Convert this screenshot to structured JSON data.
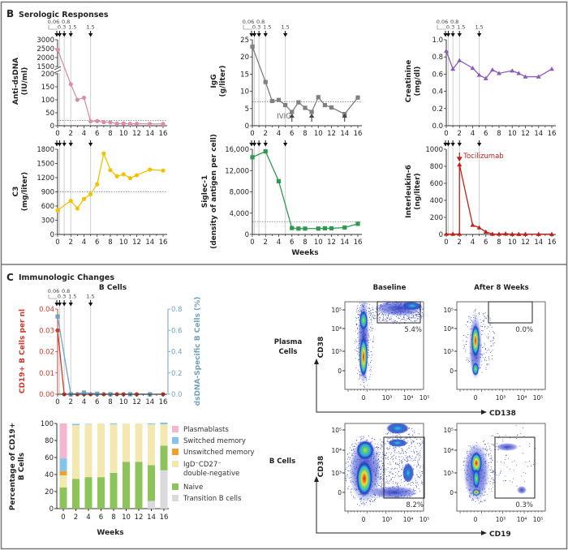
{
  "panel_b": {
    "letter": "B",
    "title": "Serologic Responses",
    "xlabel": "Weeks"
  },
  "panel_c": {
    "letter": "C",
    "title": "Immunologic Changes",
    "bcells_title": "B Cells",
    "bar_xlabel": "Weeks"
  },
  "doses": {
    "weeks": [
      0,
      0.3,
      1,
      2,
      5
    ],
    "labels": [
      "0.06",
      "0.3",
      "0.8",
      "1.5",
      "1.5"
    ]
  },
  "chart_data": [
    {
      "type": "line",
      "ylabel": [
        "Anti-dsDNA",
        "(IU/ml)"
      ],
      "ylim": [
        0,
        3000
      ],
      "axis_break": [
        200,
        1500
      ],
      "yticks": [
        0,
        50,
        100,
        150,
        200,
        1500,
        2000,
        2500,
        3000
      ],
      "xticks": [
        0,
        2,
        4,
        6,
        8,
        10,
        12,
        14,
        16
      ],
      "xlim": [
        0,
        16
      ],
      "reference": 20,
      "color": "#d98fa9",
      "marker": "circle",
      "points": [
        [
          0,
          2450
        ],
        [
          2,
          160
        ],
        [
          3,
          100
        ],
        [
          4,
          108
        ],
        [
          5,
          17
        ],
        [
          6,
          18
        ],
        [
          7,
          14
        ],
        [
          8,
          13
        ],
        [
          9,
          8
        ],
        [
          10,
          9
        ],
        [
          11,
          7
        ],
        [
          12,
          8
        ],
        [
          14,
          7
        ],
        [
          16,
          7
        ]
      ]
    },
    {
      "type": "line",
      "ylabel": [
        "C3",
        "(mg/liter)"
      ],
      "ylim": [
        0,
        1800
      ],
      "yticks": [
        0,
        300,
        600,
        900,
        1200,
        1500,
        1800
      ],
      "xticks": [
        0,
        2,
        4,
        6,
        8,
        10,
        12,
        14,
        16
      ],
      "xlim": [
        0,
        16
      ],
      "reference": 900,
      "color": "#f2c200",
      "marker": "circle",
      "points": [
        [
          0,
          510
        ],
        [
          2,
          710
        ],
        [
          3,
          550
        ],
        [
          4,
          750
        ],
        [
          5,
          850
        ],
        [
          6,
          1060
        ],
        [
          7,
          1710
        ],
        [
          8,
          1360
        ],
        [
          9,
          1230
        ],
        [
          10,
          1270
        ],
        [
          11,
          1190
        ],
        [
          12,
          1250
        ],
        [
          14,
          1370
        ],
        [
          16,
          1350
        ]
      ]
    },
    {
      "type": "line",
      "ylabel": [
        "IgG",
        "(g/liter)"
      ],
      "ylim": [
        0,
        25
      ],
      "yticks": [
        0,
        5,
        10,
        15,
        20,
        25
      ],
      "xticks": [
        0,
        2,
        4,
        6,
        8,
        10,
        12,
        14,
        16
      ],
      "xlim": [
        0,
        16
      ],
      "reference": 7,
      "color": "#808080",
      "marker": "square",
      "annotation": {
        "text": "IVIG",
        "arrows_at": [
          6,
          9,
          14
        ]
      },
      "points": [
        [
          0,
          23
        ],
        [
          2,
          12.7
        ],
        [
          3,
          7.2
        ],
        [
          4,
          7.5
        ],
        [
          5,
          6
        ],
        [
          6,
          4
        ],
        [
          7,
          6.8
        ],
        [
          8,
          5.2
        ],
        [
          9,
          4
        ],
        [
          10,
          8.3
        ],
        [
          11,
          6
        ],
        [
          12,
          5.3
        ],
        [
          14,
          3.4
        ],
        [
          16,
          8.2
        ]
      ]
    },
    {
      "type": "line",
      "ylabel": [
        "Siglec-1",
        "(density of antigen per cell)"
      ],
      "ylim": [
        0,
        16000
      ],
      "yticks": [
        0,
        4000,
        8000,
        12000,
        16000
      ],
      "ytick_labels": [
        "0",
        "4,000",
        "8,000",
        "12,000",
        "16,000"
      ],
      "xticks": [
        0,
        2,
        4,
        6,
        8,
        10,
        12,
        14,
        16
      ],
      "xlim": [
        0,
        16
      ],
      "reference": 2400,
      "color": "#2e9a50",
      "marker": "square",
      "points": [
        [
          0,
          14500
        ],
        [
          2,
          15600
        ],
        [
          4,
          10000
        ],
        [
          6,
          1200
        ],
        [
          7,
          1100
        ],
        [
          8,
          1100
        ],
        [
          10,
          1100
        ],
        [
          11,
          1150
        ],
        [
          12,
          1150
        ],
        [
          14,
          1300
        ],
        [
          16,
          2000
        ]
      ]
    },
    {
      "type": "line",
      "ylabel": [
        "Creatinine",
        "(mg/dl)"
      ],
      "ylim": [
        0,
        1.0
      ],
      "yticks": [
        0,
        0.2,
        0.4,
        0.6,
        0.8,
        1.0
      ],
      "ytick_labels": [
        "0.0",
        "0.2",
        "0.4",
        "0.6",
        "0.8",
        "1.0"
      ],
      "xticks": [
        0,
        2,
        4,
        6,
        8,
        10,
        12,
        14,
        16
      ],
      "xlim": [
        0,
        16
      ],
      "color": "#8a5bb8",
      "marker": "triangle",
      "points": [
        [
          0,
          0.87
        ],
        [
          1,
          0.66
        ],
        [
          2,
          0.76
        ],
        [
          4,
          0.67
        ],
        [
          5,
          0.59
        ],
        [
          6,
          0.55
        ],
        [
          7,
          0.65
        ],
        [
          8,
          0.61
        ],
        [
          10,
          0.64
        ],
        [
          11,
          0.61
        ],
        [
          12,
          0.57
        ],
        [
          14,
          0.57
        ],
        [
          16,
          0.66
        ]
      ]
    },
    {
      "type": "line",
      "ylabel": [
        "Interleukin-6",
        "(ng/liter)"
      ],
      "ylim": [
        0,
        1000
      ],
      "yticks": [
        0,
        200,
        400,
        600,
        800,
        1000
      ],
      "xticks": [
        0,
        2,
        4,
        6,
        8,
        10,
        12,
        14,
        16
      ],
      "xlim": [
        0,
        16
      ],
      "color": "#c0201a",
      "marker": "triangle",
      "annotation": {
        "text": "Tocilizumab",
        "at": 2
      },
      "points": [
        [
          0,
          5
        ],
        [
          1,
          5
        ],
        [
          2,
          5
        ],
        [
          2,
          820
        ],
        [
          4,
          110
        ],
        [
          5,
          80
        ],
        [
          6,
          30
        ],
        [
          7,
          5
        ],
        [
          8,
          5
        ],
        [
          9,
          8
        ],
        [
          10,
          3
        ],
        [
          11,
          3
        ],
        [
          12,
          3
        ],
        [
          14,
          3
        ],
        [
          16,
          3
        ]
      ]
    },
    {
      "type": "line",
      "title": "B Cells",
      "xticks": [
        0,
        2,
        4,
        6,
        8,
        10,
        12,
        14,
        16
      ],
      "xlim": [
        0,
        16
      ],
      "series": [
        {
          "name": "CD19+ B Cells per nl",
          "axis": "left",
          "ylim": [
            0,
            0.04
          ],
          "yticks": [
            0,
            0.01,
            0.02,
            0.03,
            0.04
          ],
          "ytick_labels": [
            "0.00",
            "0.01",
            "0.02",
            "0.03",
            "0.04"
          ],
          "color": "#d23a2a",
          "marker": "circle",
          "points": [
            [
              0,
              0.03
            ],
            [
              1,
              0
            ],
            [
              2,
              0
            ],
            [
              3,
              0
            ],
            [
              4,
              0
            ],
            [
              5,
              0
            ],
            [
              6,
              0
            ],
            [
              7,
              0
            ],
            [
              8,
              0
            ],
            [
              9,
              0
            ],
            [
              10,
              0
            ],
            [
              11,
              0
            ],
            [
              12,
              0
            ],
            [
              14,
              0
            ],
            [
              16,
              0
            ]
          ]
        },
        {
          "name": "dsDNA-Specific B Cells (%)",
          "axis": "right",
          "ylim": [
            0,
            0.8
          ],
          "yticks": [
            0,
            0.2,
            0.4,
            0.6,
            0.8
          ],
          "ytick_labels": [
            "0.0",
            "0.2",
            "0.4",
            "0.6",
            "0.8"
          ],
          "color": "#6fa3bf",
          "marker": "square",
          "points": [
            [
              0,
              0.73
            ],
            [
              2,
              0
            ],
            [
              4,
              0.015
            ],
            [
              6,
              0.005
            ],
            [
              8,
              0
            ],
            [
              11,
              0
            ],
            [
              14,
              0
            ]
          ]
        }
      ]
    },
    {
      "type": "bar",
      "stacked": true,
      "ylabel": [
        "Percentage of CD19+",
        "B Cells"
      ],
      "xlabel": "Weeks",
      "categories": [
        "0",
        "2",
        "4",
        "6",
        "8",
        "10",
        "12",
        "14",
        "16"
      ],
      "ylim": [
        0,
        100
      ],
      "yticks": [
        0,
        20,
        40,
        60,
        80,
        100
      ],
      "legend": "right",
      "series": [
        {
          "name": "Transition B cells",
          "color": "#d9d9de",
          "values": [
            0,
            0,
            0,
            0,
            0,
            0,
            0,
            9,
            45
          ]
        },
        {
          "name": "Naive",
          "color": "#8dc45a",
          "values": [
            25,
            35,
            37,
            37,
            42,
            55,
            55,
            42,
            29
          ]
        },
        {
          "name": "IgD⁻CD27⁻ double-negative",
          "color": "#f2e8b0",
          "values": [
            14,
            63,
            62,
            63,
            57,
            45,
            45,
            48,
            25
          ]
        },
        {
          "name": "Unswitched memory",
          "color": "#f0a030",
          "values": [
            5,
            0,
            0,
            0,
            0,
            0,
            0,
            0,
            0
          ]
        },
        {
          "name": "Switched memory",
          "color": "#84c4ea",
          "values": [
            15,
            1.5,
            0.5,
            0,
            1,
            0,
            0,
            1,
            2
          ]
        },
        {
          "name": "Plasmablasts",
          "color": "#f2b6cf",
          "values": [
            41,
            0,
            0,
            0,
            0,
            0,
            0,
            0,
            0
          ]
        }
      ]
    }
  ],
  "flow": {
    "columns": [
      "Baseline",
      "After 8 Weeks"
    ],
    "rows": [
      {
        "label": "Plasma Cells",
        "xaxis": "CD138",
        "yaxis": "CD38",
        "gates": [
          "5.4%",
          "0.0%"
        ]
      },
      {
        "label": "B Cells",
        "xaxis": "CD19",
        "yaxis": "CD38",
        "gates": [
          "8.2%",
          "0.3%"
        ]
      }
    ],
    "xticks": [
      "0",
      "10³",
      "10⁴",
      "10⁵"
    ],
    "yticks": [
      "10⁵",
      "10⁴",
      "10³",
      "0"
    ]
  }
}
